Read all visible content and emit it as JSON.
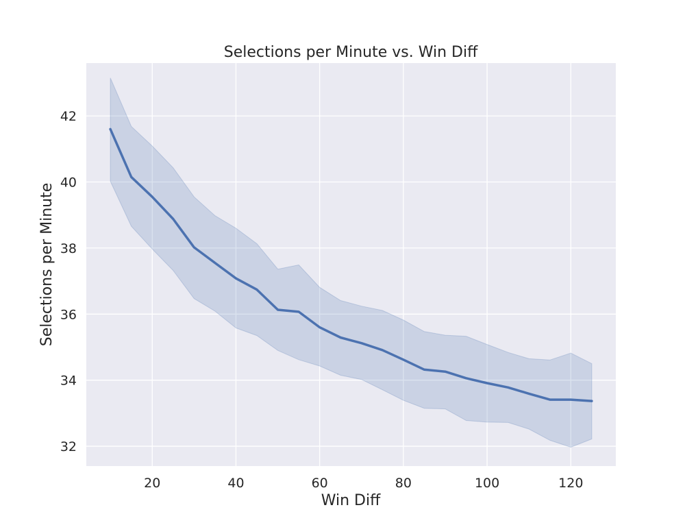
{
  "chart_data": {
    "type": "line",
    "title": "Selections per Minute vs. Win Diff",
    "xlabel": "Win Diff",
    "ylabel": "Selections per Minute",
    "xlim": [
      4.25,
      130.75
    ],
    "ylim": [
      31.4,
      43.6
    ],
    "xticks": [
      20,
      40,
      60,
      80,
      100,
      120
    ],
    "yticks": [
      32,
      34,
      36,
      38,
      40,
      42
    ],
    "grid": true,
    "legend": "none",
    "colors": {
      "background": "#eaeaf2",
      "grid": "#ffffff",
      "line": "#4c72b0",
      "band": "#4c72b0"
    },
    "series": [
      {
        "x": [
          10,
          15,
          20,
          25,
          30,
          35,
          40,
          45,
          50,
          55,
          60,
          65,
          70,
          75,
          80,
          85,
          90,
          95,
          100,
          105,
          110,
          115,
          120,
          125
        ],
        "y": [
          41.6,
          40.15,
          39.55,
          38.88,
          38.02,
          37.55,
          37.08,
          36.74,
          36.13,
          36.07,
          35.6,
          35.29,
          35.12,
          34.91,
          34.62,
          34.32,
          34.26,
          34.06,
          33.91,
          33.78,
          33.59,
          33.41,
          33.41,
          33.37
        ],
        "ci_lower": [
          40.02,
          38.66,
          37.97,
          37.32,
          36.47,
          36.09,
          35.58,
          35.35,
          34.9,
          34.62,
          34.43,
          34.15,
          34.02,
          33.71,
          33.39,
          33.15,
          33.13,
          32.78,
          32.73,
          32.72,
          32.52,
          32.18,
          31.97,
          32.22
        ],
        "ci_upper": [
          43.15,
          41.68,
          41.09,
          40.43,
          39.55,
          38.98,
          38.6,
          38.13,
          37.36,
          37.49,
          36.81,
          36.41,
          36.24,
          36.11,
          35.82,
          35.47,
          35.36,
          35.33,
          35.08,
          34.84,
          34.65,
          34.61,
          34.82,
          34.5
        ]
      }
    ]
  }
}
